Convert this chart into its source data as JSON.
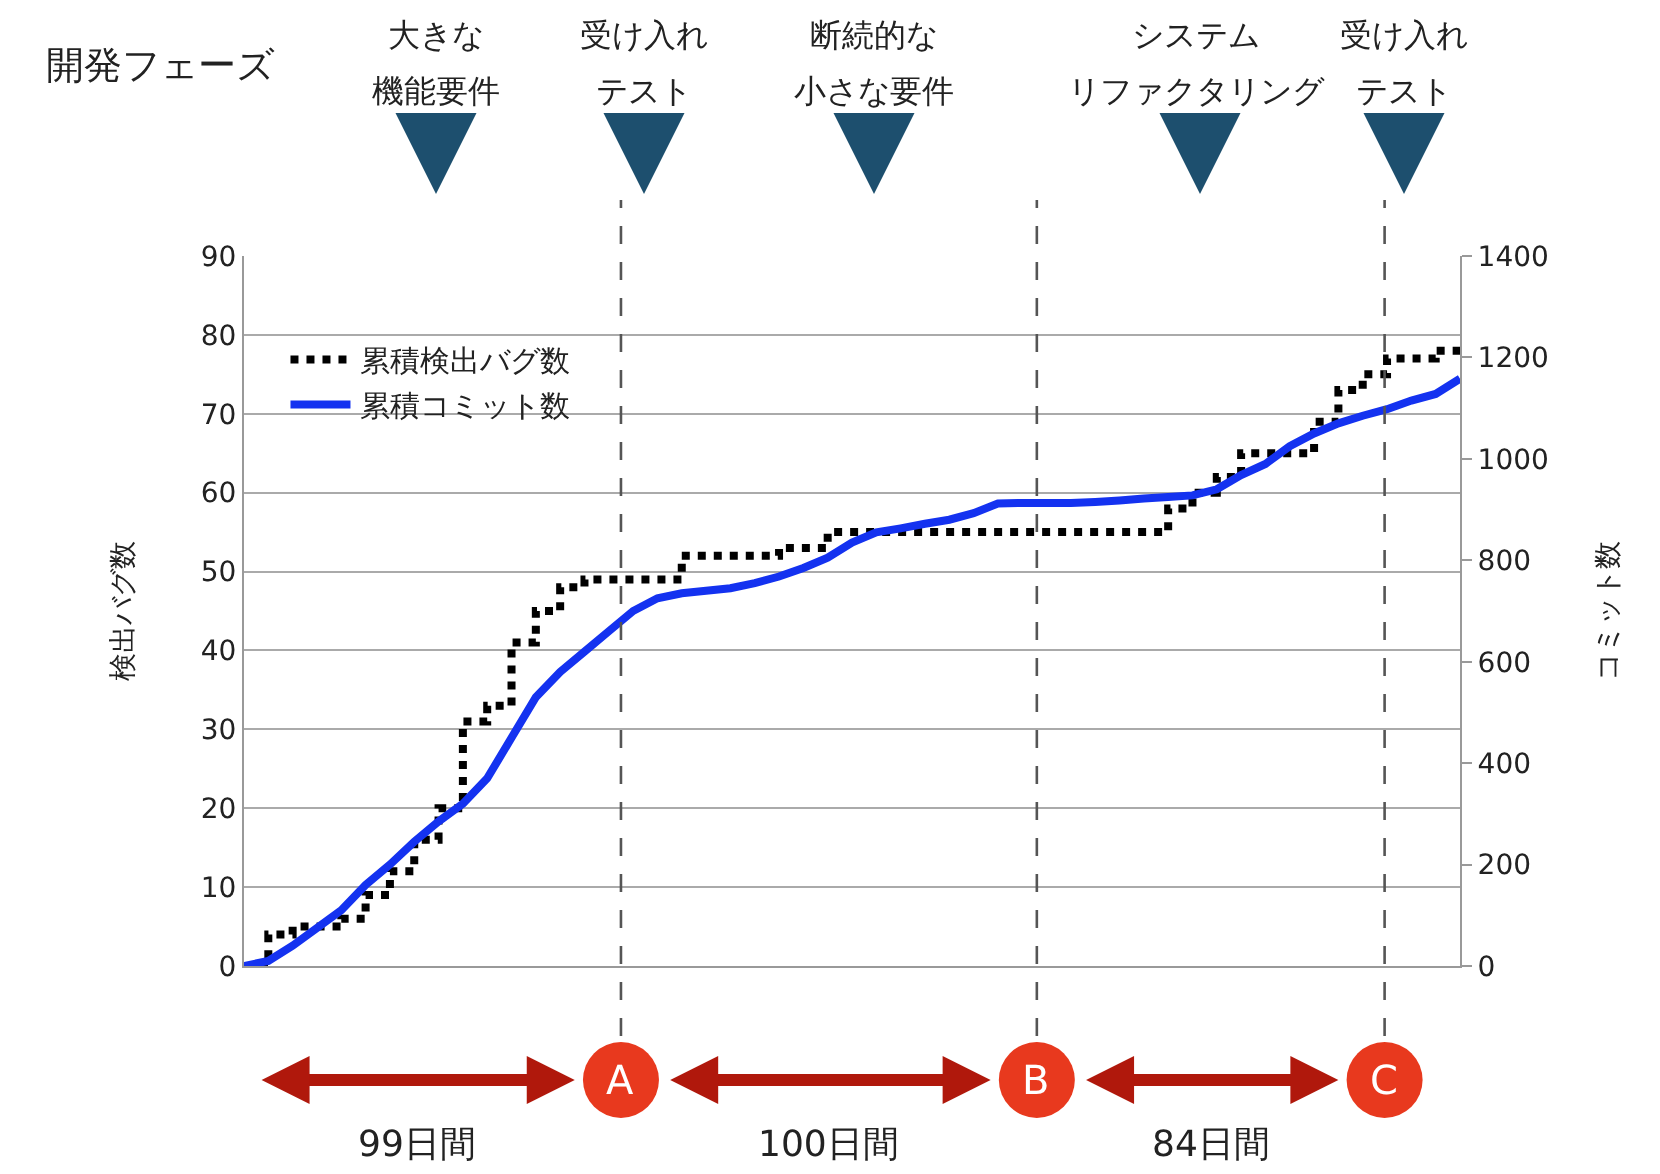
{
  "chart_data": {
    "type": "line",
    "ylabel": "検出バグ数",
    "y2label": "コミット数",
    "annotations": [
      "開発フェーズ",
      "大きな",
      "機能要件",
      "受け入れ",
      "テスト",
      "断続的な",
      "小さな要件",
      "システム",
      "リファクタリング",
      "受け入れ",
      "テスト",
      "A",
      "B",
      "C",
      "99日間",
      "100日間",
      "84日間"
    ],
    "categories": [
      null,
      null,
      null,
      null,
      null,
      null,
      null,
      null,
      null,
      null,
      null,
      null,
      null,
      null,
      null,
      null,
      null,
      null,
      null,
      null,
      null,
      null,
      null,
      null,
      null,
      null,
      null,
      null,
      null,
      null,
      null,
      null,
      null,
      null,
      null,
      null,
      null,
      null,
      null,
      null,
      null,
      null,
      null,
      null,
      null,
      null,
      null,
      null,
      null,
      null,
      null
    ],
    "series": [
      {
        "name": "累積検出バグ数",
        "type": "step",
        "line_style": "dotted",
        "color": "#000000",
        "values": [
          0,
          4,
          5,
          5,
          6,
          9,
          12,
          16,
          20,
          31,
          33,
          41,
          45,
          48,
          49,
          49,
          49,
          49,
          52,
          52,
          52,
          52,
          53,
          53,
          55,
          55,
          55,
          55,
          55,
          55,
          55,
          55,
          55,
          55,
          55,
          55,
          55,
          55,
          58,
          60,
          62,
          65,
          65,
          65,
          69,
          73,
          75,
          77,
          77,
          78,
          78
        ]
      },
      {
        "name": "累積コミット数",
        "line_style": "solid",
        "axis": "y2",
        "color": "#1432f0",
        "values": [
          0,
          10,
          40,
          75,
          110,
          160,
          200,
          245,
          285,
          320,
          370,
          450,
          530,
          580,
          620,
          660,
          700,
          725,
          735,
          740,
          745,
          755,
          768,
          785,
          805,
          835,
          855,
          863,
          872,
          880,
          893,
          912,
          913,
          913,
          913,
          915,
          918,
          922,
          925,
          928,
          940,
          968,
          990,
          1025,
          1050,
          1070,
          1085,
          1098,
          1115,
          1128,
          1158
        ]
      }
    ],
    "ylim": [
      0,
      90
    ],
    "yticks": [
      0,
      10,
      20,
      30,
      40,
      50,
      60,
      70,
      80,
      90
    ],
    "y2lim": [
      0,
      1400
    ],
    "y2ticks": [
      0,
      200,
      400,
      600,
      800,
      1000,
      1200,
      1400
    ],
    "grid": "y",
    "legend": "top left"
  }
}
